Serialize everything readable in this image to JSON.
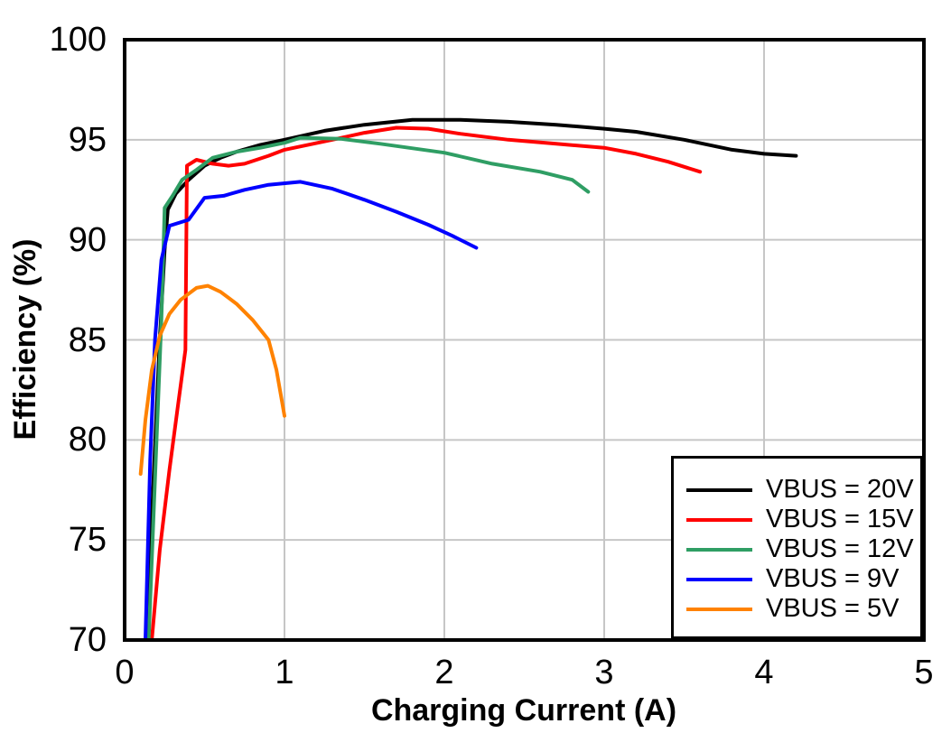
{
  "chart_data": {
    "type": "line",
    "title": "",
    "xlabel": "Charging Current (A)",
    "ylabel": "Efficiency (%)",
    "xlim": [
      0,
      5
    ],
    "ylim": [
      70,
      100
    ],
    "xticks": [
      0,
      1,
      2,
      3,
      4,
      5
    ],
    "yticks": [
      70,
      75,
      80,
      85,
      90,
      95,
      100
    ],
    "grid": true,
    "grid_color": "#c6c6c6",
    "frame_color": "#000000",
    "legend_position": "lower right",
    "series": [
      {
        "name": "VBUS = 20V",
        "color": "#000000",
        "points": [
          [
            0.14,
            70
          ],
          [
            0.18,
            78
          ],
          [
            0.22,
            85
          ],
          [
            0.25,
            89.5
          ],
          [
            0.27,
            91.5
          ],
          [
            0.32,
            92.3
          ],
          [
            0.4,
            93.0
          ],
          [
            0.5,
            93.7
          ],
          [
            0.6,
            94.1
          ],
          [
            0.7,
            94.4
          ],
          [
            0.85,
            94.75
          ],
          [
            1.0,
            95.0
          ],
          [
            1.25,
            95.45
          ],
          [
            1.5,
            95.75
          ],
          [
            1.8,
            96.0
          ],
          [
            2.1,
            96.0
          ],
          [
            2.4,
            95.9
          ],
          [
            2.7,
            95.75
          ],
          [
            3.0,
            95.55
          ],
          [
            3.2,
            95.4
          ],
          [
            3.5,
            95.0
          ],
          [
            3.8,
            94.5
          ],
          [
            4.0,
            94.3
          ],
          [
            4.2,
            94.2
          ]
        ]
      },
      {
        "name": "VBUS = 15V",
        "color": "#ff0000",
        "points": [
          [
            0.17,
            70
          ],
          [
            0.22,
            74.5
          ],
          [
            0.28,
            78.5
          ],
          [
            0.33,
            81.5
          ],
          [
            0.38,
            84.5
          ],
          [
            0.39,
            93.7
          ],
          [
            0.45,
            94.0
          ],
          [
            0.55,
            93.8
          ],
          [
            0.65,
            93.7
          ],
          [
            0.75,
            93.8
          ],
          [
            0.9,
            94.2
          ],
          [
            1.0,
            94.5
          ],
          [
            1.3,
            95.0
          ],
          [
            1.5,
            95.35
          ],
          [
            1.7,
            95.6
          ],
          [
            1.9,
            95.55
          ],
          [
            2.1,
            95.3
          ],
          [
            2.4,
            95.0
          ],
          [
            2.7,
            94.8
          ],
          [
            3.0,
            94.6
          ],
          [
            3.2,
            94.3
          ],
          [
            3.4,
            93.9
          ],
          [
            3.6,
            93.4
          ]
        ]
      },
      {
        "name": "VBUS = 12V",
        "color": "#2f9e64",
        "points": [
          [
            0.15,
            70
          ],
          [
            0.19,
            78
          ],
          [
            0.23,
            86
          ],
          [
            0.25,
            91.6
          ],
          [
            0.3,
            92.2
          ],
          [
            0.36,
            93.0
          ],
          [
            0.45,
            93.5
          ],
          [
            0.55,
            94.1
          ],
          [
            0.7,
            94.4
          ],
          [
            0.85,
            94.6
          ],
          [
            1.0,
            94.85
          ],
          [
            1.1,
            95.1
          ],
          [
            1.35,
            95.05
          ],
          [
            1.6,
            94.8
          ],
          [
            2.0,
            94.35
          ],
          [
            2.3,
            93.8
          ],
          [
            2.6,
            93.4
          ],
          [
            2.8,
            93.0
          ],
          [
            2.9,
            92.4
          ]
        ]
      },
      {
        "name": "VBUS = 9V",
        "color": "#0000ff",
        "points": [
          [
            0.13,
            70
          ],
          [
            0.16,
            79
          ],
          [
            0.19,
            85
          ],
          [
            0.23,
            89
          ],
          [
            0.28,
            90.7
          ],
          [
            0.4,
            91.0
          ],
          [
            0.5,
            92.1
          ],
          [
            0.62,
            92.2
          ],
          [
            0.75,
            92.5
          ],
          [
            0.9,
            92.75
          ],
          [
            1.1,
            92.9
          ],
          [
            1.3,
            92.55
          ],
          [
            1.5,
            92.0
          ],
          [
            1.7,
            91.4
          ],
          [
            1.9,
            90.75
          ],
          [
            2.05,
            90.2
          ],
          [
            2.2,
            89.6
          ]
        ]
      },
      {
        "name": "VBUS = 5V",
        "color": "#ff8200",
        "points": [
          [
            0.1,
            78.3
          ],
          [
            0.13,
            81
          ],
          [
            0.17,
            83.5
          ],
          [
            0.22,
            85.2
          ],
          [
            0.28,
            86.3
          ],
          [
            0.35,
            87.0
          ],
          [
            0.45,
            87.6
          ],
          [
            0.52,
            87.7
          ],
          [
            0.6,
            87.4
          ],
          [
            0.7,
            86.8
          ],
          [
            0.8,
            86.0
          ],
          [
            0.9,
            85.0
          ],
          [
            0.95,
            83.5
          ],
          [
            1.0,
            81.2
          ]
        ]
      }
    ]
  }
}
